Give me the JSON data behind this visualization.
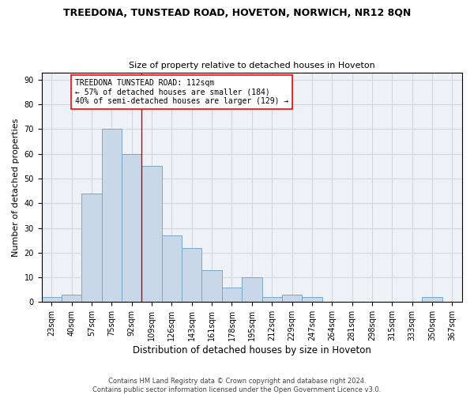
{
  "title": "TREEDONA, TUNSTEAD ROAD, HOVETON, NORWICH, NR12 8QN",
  "subtitle": "Size of property relative to detached houses in Hoveton",
  "xlabel": "Distribution of detached houses by size in Hoveton",
  "ylabel": "Number of detached properties",
  "bar_labels": [
    "23sqm",
    "40sqm",
    "57sqm",
    "75sqm",
    "92sqm",
    "109sqm",
    "126sqm",
    "143sqm",
    "161sqm",
    "178sqm",
    "195sqm",
    "212sqm",
    "229sqm",
    "247sqm",
    "264sqm",
    "281sqm",
    "298sqm",
    "315sqm",
    "333sqm",
    "350sqm",
    "367sqm"
  ],
  "bar_values": [
    2,
    3,
    44,
    70,
    60,
    55,
    27,
    22,
    13,
    6,
    10,
    2,
    3,
    2,
    0,
    0,
    0,
    0,
    0,
    2,
    0
  ],
  "bar_color": "#c8d8e8",
  "bar_edge_color": "#7aa8c8",
  "vline_index": 5,
  "vline_color": "#cc0000",
  "annotation_text": "TREEDONA TUNSTEAD ROAD: 112sqm\n← 57% of detached houses are smaller (184)\n40% of semi-detached houses are larger (129) →",
  "ylim": [
    0,
    93
  ],
  "yticks": [
    0,
    10,
    20,
    30,
    40,
    50,
    60,
    70,
    80,
    90
  ],
  "grid_color": "#d0d8e0",
  "bg_color": "#eef2f7",
  "footer": "Contains HM Land Registry data © Crown copyright and database right 2024.\nContains public sector information licensed under the Open Government Licence v3.0.",
  "title_fontsize": 9,
  "subtitle_fontsize": 8,
  "xlabel_fontsize": 8.5,
  "ylabel_fontsize": 8,
  "tick_fontsize": 7,
  "annot_fontsize": 7,
  "footer_fontsize": 6
}
